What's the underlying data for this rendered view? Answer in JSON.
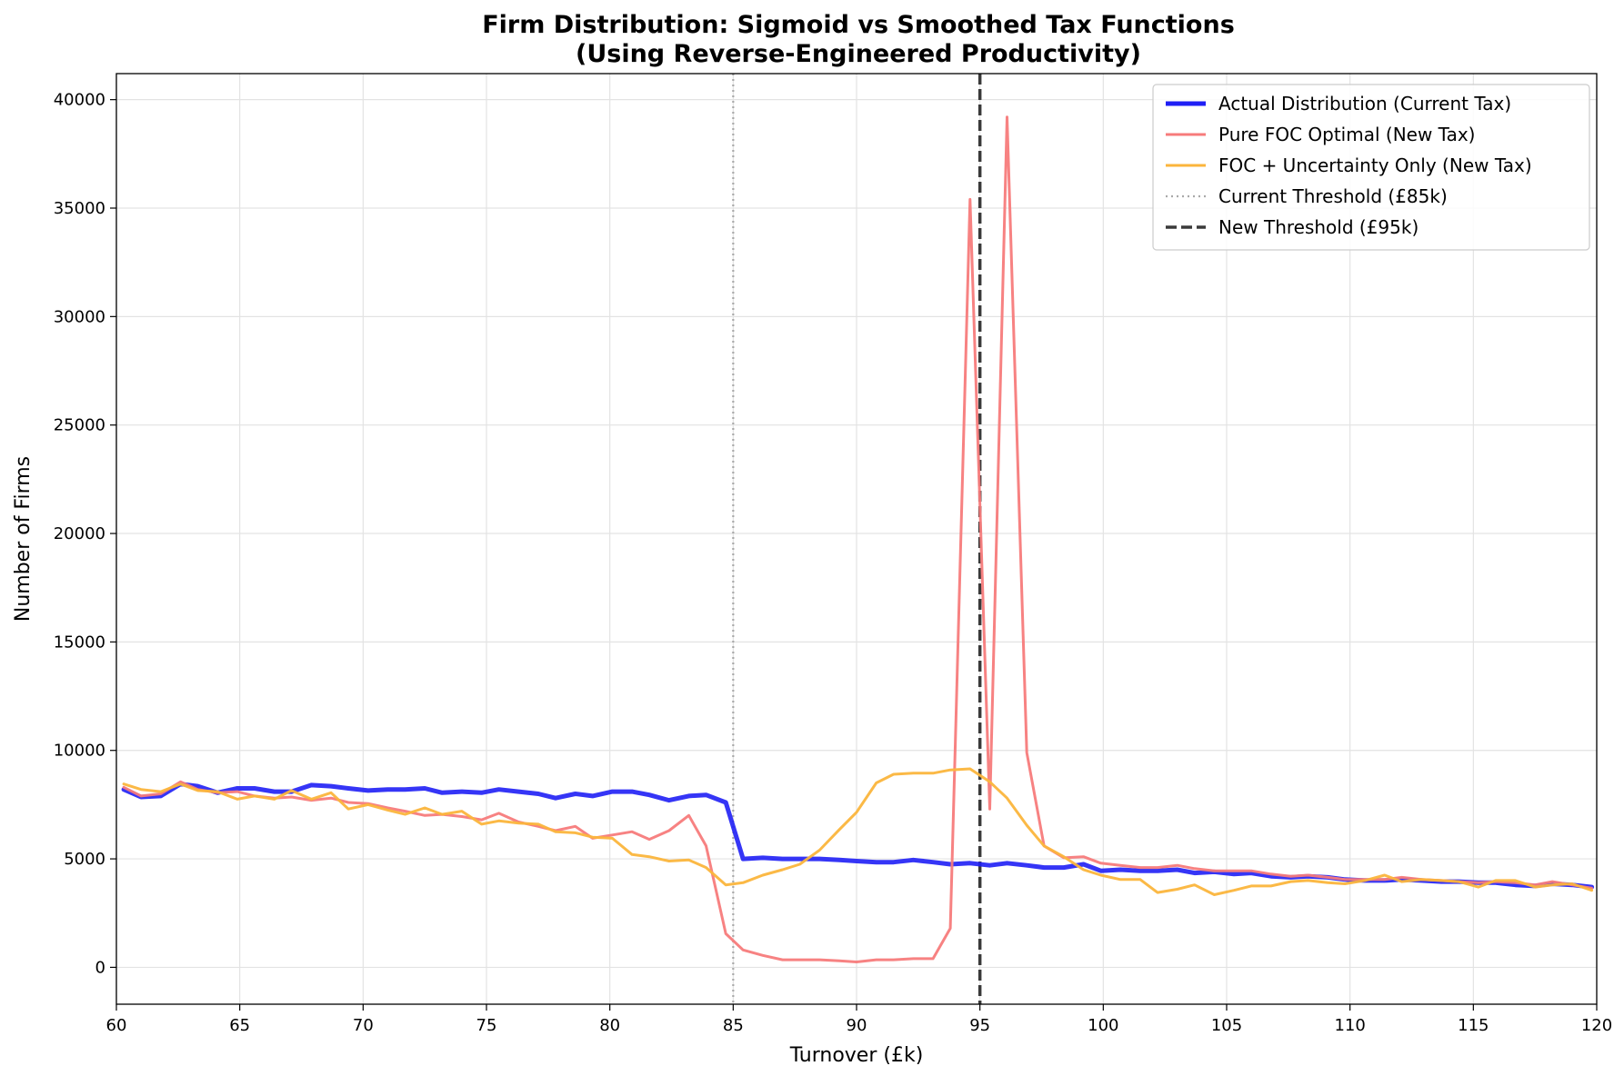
{
  "chart_data": {
    "type": "line",
    "title": "Firm Distribution: Sigmoid vs Smoothed Tax Functions",
    "subtitle": "(Using Reverse-Engineered Productivity)",
    "xlabel": "Turnover (£k)",
    "ylabel": "Number of Firms",
    "xlim": [
      60,
      120
    ],
    "ylim": [
      -1700,
      41200
    ],
    "xticks": [
      60,
      65,
      70,
      75,
      80,
      85,
      90,
      95,
      100,
      105,
      110,
      115,
      120
    ],
    "yticks": [
      0,
      5000,
      10000,
      15000,
      20000,
      25000,
      30000,
      35000,
      40000
    ],
    "grid": true,
    "legend_position": "top-right",
    "series": [
      {
        "name": "Actual Distribution (Current Tax)",
        "color": "#1f1ff5",
        "style": "solid-thick",
        "x": [
          60.3,
          61.0,
          61.8,
          62.6,
          63.3,
          64.1,
          64.9,
          65.6,
          66.4,
          67.1,
          67.9,
          68.7,
          69.4,
          70.2,
          71.0,
          71.7,
          72.5,
          73.2,
          74.0,
          74.8,
          75.5,
          76.3,
          77.1,
          77.8,
          78.6,
          79.3,
          80.1,
          80.9,
          81.6,
          82.4,
          83.2,
          83.9,
          84.7,
          85.4,
          86.2,
          87.0,
          87.7,
          88.5,
          89.3,
          90.0,
          90.8,
          91.5,
          92.3,
          93.1,
          93.8,
          94.6,
          95.4,
          96.1,
          96.9,
          97.6,
          98.4,
          99.2,
          99.9,
          100.7,
          101.5,
          102.2,
          103.0,
          103.7,
          104.5,
          105.3,
          106.0,
          106.8,
          107.6,
          108.3,
          109.1,
          109.8,
          110.6,
          111.4,
          112.1,
          112.9,
          113.7,
          114.4,
          115.2,
          115.9,
          116.7,
          117.5,
          118.2,
          119.0,
          119.8
        ],
        "values": [
          8200,
          7850,
          7900,
          8450,
          8350,
          8050,
          8250,
          8250,
          8100,
          8100,
          8400,
          8350,
          8250,
          8150,
          8200,
          8200,
          8250,
          8050,
          8100,
          8050,
          8200,
          8100,
          8000,
          7800,
          8000,
          7900,
          8100,
          8100,
          7950,
          7700,
          7900,
          7950,
          7600,
          5000,
          5050,
          5000,
          5000,
          5000,
          4950,
          4900,
          4850,
          4850,
          4950,
          4850,
          4750,
          4800,
          4700,
          4800,
          4700,
          4600,
          4600,
          4750,
          4450,
          4500,
          4450,
          4450,
          4500,
          4350,
          4400,
          4300,
          4350,
          4200,
          4150,
          4200,
          4150,
          4050,
          4000,
          4000,
          4050,
          4000,
          3950,
          3950,
          3900,
          3900,
          3800,
          3750,
          3850,
          3800,
          3700
        ]
      },
      {
        "name": "Pure FOC Optimal (New Tax)",
        "color": "#f77b7b",
        "style": "solid",
        "x": [
          60.3,
          61.0,
          61.8,
          62.6,
          63.3,
          64.1,
          64.9,
          65.6,
          66.4,
          67.1,
          67.9,
          68.7,
          69.4,
          70.2,
          71.0,
          71.7,
          72.5,
          73.2,
          74.0,
          74.8,
          75.5,
          76.3,
          77.1,
          77.8,
          78.6,
          79.3,
          80.1,
          80.9,
          81.6,
          82.4,
          83.2,
          83.9,
          84.7,
          85.4,
          86.2,
          87.0,
          87.7,
          88.5,
          89.3,
          90.0,
          90.8,
          91.5,
          92.3,
          93.1,
          93.8,
          94.6,
          95.4,
          96.1,
          96.9,
          97.6,
          98.4,
          99.2,
          99.9,
          100.7,
          101.5,
          102.2,
          103.0,
          103.7,
          104.5,
          105.3,
          106.0,
          106.8,
          107.6,
          108.3,
          109.1,
          109.8,
          110.6,
          111.4,
          112.1,
          112.9,
          113.7,
          114.4,
          115.2,
          115.9,
          116.7,
          117.5,
          118.2,
          119.0,
          119.8
        ],
        "values": [
          8300,
          7900,
          8000,
          8550,
          8200,
          8050,
          8100,
          7900,
          7800,
          7850,
          7700,
          7800,
          7600,
          7550,
          7350,
          7200,
          7000,
          7050,
          6950,
          6800,
          7100,
          6700,
          6500,
          6300,
          6500,
          5950,
          6100,
          6250,
          5900,
          6300,
          7000,
          5600,
          1550,
          800,
          550,
          350,
          350,
          350,
          300,
          250,
          350,
          350,
          400,
          400,
          1800,
          35400,
          7300,
          39200,
          9900,
          5600,
          5050,
          5100,
          4800,
          4700,
          4600,
          4600,
          4700,
          4550,
          4450,
          4450,
          4450,
          4300,
          4200,
          4250,
          4150,
          4050,
          4050,
          4050,
          4150,
          4050,
          4000,
          3950,
          3900,
          3950,
          3900,
          3800,
          3950,
          3800,
          3650
        ]
      },
      {
        "name": "FOC + Uncertainty Only (New Tax)",
        "color": "#fbb53c",
        "style": "solid",
        "x": [
          60.3,
          61.0,
          61.8,
          62.6,
          63.3,
          64.1,
          64.9,
          65.6,
          66.4,
          67.1,
          67.9,
          68.7,
          69.4,
          70.2,
          71.0,
          71.7,
          72.5,
          73.2,
          74.0,
          74.8,
          75.5,
          76.3,
          77.1,
          77.8,
          78.6,
          79.3,
          80.1,
          80.9,
          81.6,
          82.4,
          83.2,
          83.9,
          84.7,
          85.4,
          86.2,
          87.0,
          87.7,
          88.5,
          89.3,
          90.0,
          90.8,
          91.5,
          92.3,
          93.1,
          93.8,
          94.6,
          95.4,
          96.1,
          96.9,
          97.6,
          98.4,
          99.2,
          99.9,
          100.7,
          101.5,
          102.2,
          103.0,
          103.7,
          104.5,
          105.3,
          106.0,
          106.8,
          107.6,
          108.3,
          109.1,
          109.8,
          110.6,
          111.4,
          112.1,
          112.9,
          113.7,
          114.4,
          115.2,
          115.9,
          116.7,
          117.5,
          118.2,
          119.0,
          119.8
        ],
        "values": [
          8450,
          8200,
          8100,
          8450,
          8150,
          8100,
          7750,
          7900,
          7750,
          8150,
          7750,
          8050,
          7300,
          7500,
          7250,
          7050,
          7350,
          7050,
          7200,
          6600,
          6750,
          6650,
          6600,
          6250,
          6200,
          6000,
          5950,
          5200,
          5100,
          4900,
          4950,
          4600,
          3800,
          3900,
          4250,
          4500,
          4750,
          5400,
          6350,
          7150,
          8500,
          8900,
          8950,
          8950,
          9100,
          9150,
          8550,
          7800,
          6550,
          5600,
          5100,
          4500,
          4250,
          4050,
          4050,
          3450,
          3600,
          3800,
          3350,
          3550,
          3750,
          3750,
          3950,
          4000,
          3900,
          3850,
          4000,
          4250,
          3950,
          4050,
          4000,
          3950,
          3700,
          4000,
          4000,
          3700,
          3800,
          3850,
          3550
        ]
      }
    ],
    "reference_lines": [
      {
        "name": "Current Threshold (£85k)",
        "x": 85,
        "color": "#a9a9a9",
        "style": "dotted"
      },
      {
        "name": "New Threshold (£95k)",
        "x": 95,
        "color": "#3a3a3a",
        "style": "dashed"
      }
    ]
  }
}
